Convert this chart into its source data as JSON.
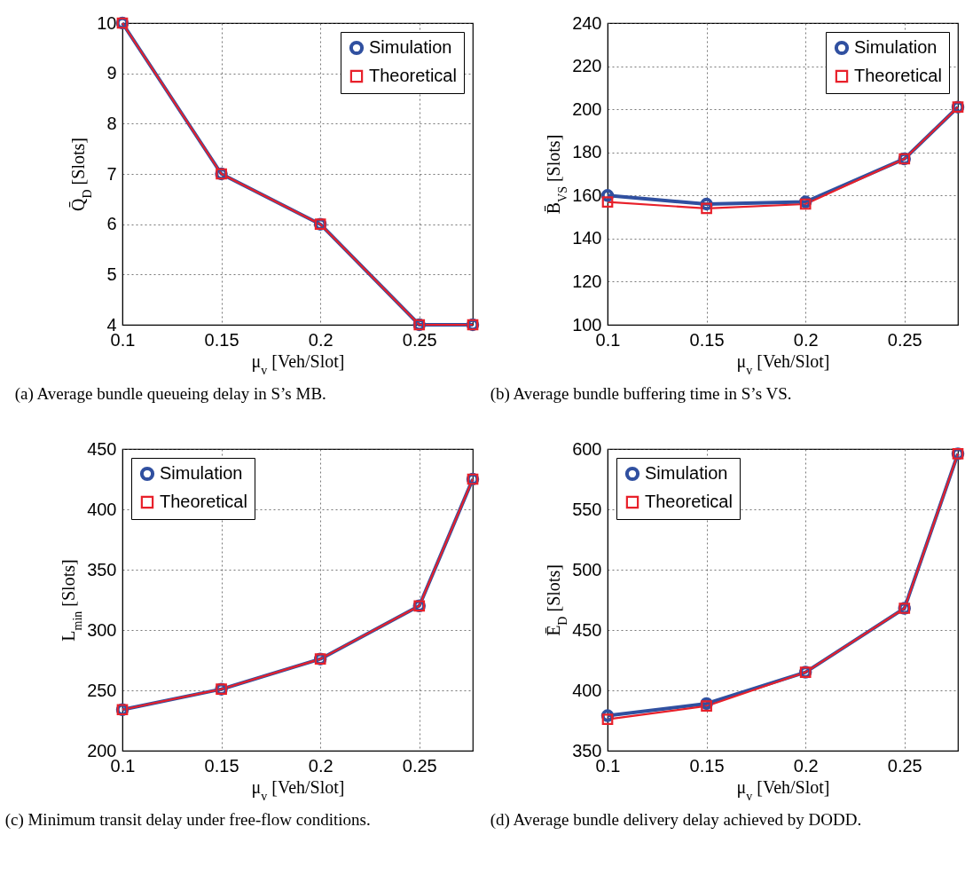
{
  "chart_data": [
    {
      "type": "line",
      "title": "(a) Average bundle queueing delay in S’s MB.",
      "xlabel": "μ$_{v}$ [Veh/Slot]",
      "ylabel": "Q̄$_{D}$ [Slots]",
      "x": [
        0.1,
        0.15,
        0.2,
        0.25,
        0.277
      ],
      "xlim": [
        0.1,
        0.277
      ],
      "xticks": [
        0.1,
        0.15,
        0.2,
        0.25
      ],
      "ylim": [
        4,
        10
      ],
      "yticks": [
        4,
        5,
        6,
        7,
        8,
        9,
        10
      ],
      "grid": true,
      "legend": "top right",
      "series": [
        {
          "name": "Simulation",
          "color": "#3050a0",
          "marker": "circle",
          "values": [
            10,
            7,
            6,
            4,
            4
          ]
        },
        {
          "name": "Theoretical",
          "color": "#e8202a",
          "marker": "square",
          "values": [
            10,
            7,
            6,
            4,
            4
          ]
        }
      ]
    },
    {
      "type": "line",
      "title": "(b) Average bundle buffering time in S’s VS.",
      "xlabel": "μ$_{v}$ [Veh/Slot]",
      "ylabel": "B̄$_{VS}$ [Slots]",
      "x": [
        0.1,
        0.15,
        0.2,
        0.25,
        0.277
      ],
      "xlim": [
        0.1,
        0.277
      ],
      "xticks": [
        0.1,
        0.15,
        0.2,
        0.25
      ],
      "ylim": [
        100,
        240
      ],
      "yticks": [
        100,
        120,
        140,
        160,
        180,
        200,
        220,
        240
      ],
      "grid": true,
      "legend": "top right",
      "series": [
        {
          "name": "Simulation",
          "color": "#3050a0",
          "marker": "circle",
          "values": [
            160,
            156,
            157,
            177,
            201
          ]
        },
        {
          "name": "Theoretical",
          "color": "#e8202a",
          "marker": "square",
          "values": [
            157,
            154,
            156,
            177,
            201
          ]
        }
      ]
    },
    {
      "type": "line",
      "title": "(c) Minimum transit delay under free-flow conditions.",
      "xlabel": "μ$_{v}$ [Veh/Slot]",
      "ylabel": "L$_{min}$ [Slots]",
      "x": [
        0.1,
        0.15,
        0.2,
        0.25,
        0.277
      ],
      "xlim": [
        0.1,
        0.277
      ],
      "xticks": [
        0.1,
        0.15,
        0.2,
        0.25
      ],
      "ylim": [
        200,
        450
      ],
      "yticks": [
        200,
        250,
        300,
        350,
        400,
        450
      ],
      "grid": true,
      "legend": "top left",
      "series": [
        {
          "name": "Simulation",
          "color": "#3050a0",
          "marker": "circle",
          "values": [
            234,
            251,
            276,
            320,
            425
          ]
        },
        {
          "name": "Theoretical",
          "color": "#e8202a",
          "marker": "square",
          "values": [
            234,
            251,
            276,
            320,
            425
          ]
        }
      ]
    },
    {
      "type": "line",
      "title": "(d) Average bundle delivery delay achieved by DODD.",
      "xlabel": "μ$_{v}$ [Veh/Slot]",
      "ylabel": "Ē$_{D}$ [Slots]",
      "x": [
        0.1,
        0.15,
        0.2,
        0.25,
        0.277
      ],
      "xlim": [
        0.1,
        0.277
      ],
      "xticks": [
        0.1,
        0.15,
        0.2,
        0.25
      ],
      "ylim": [
        350,
        600
      ],
      "yticks": [
        350,
        400,
        450,
        500,
        550,
        600
      ],
      "grid": true,
      "legend": "top left",
      "series": [
        {
          "name": "Simulation",
          "color": "#3050a0",
          "marker": "circle",
          "values": [
            379,
            389,
            415,
            468,
            596
          ]
        },
        {
          "name": "Theoretical",
          "color": "#e8202a",
          "marker": "square",
          "values": [
            376,
            387,
            415,
            468,
            596
          ]
        }
      ]
    }
  ]
}
